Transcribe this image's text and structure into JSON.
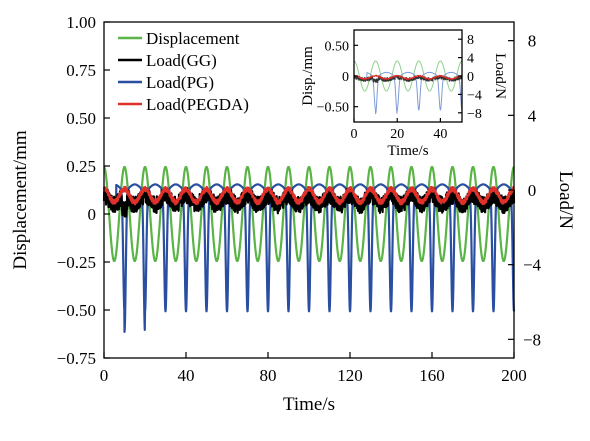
{
  "chart_data": [
    {
      "id": "main",
      "type": "line",
      "xlabel": "Time/s",
      "ylabel": "Displacement/mm",
      "y2label": "Load/N",
      "xlim": [
        0,
        200
      ],
      "ylim": [
        -0.75,
        1.0
      ],
      "y2lim": [
        -9.0,
        9.0
      ],
      "xticks": [
        "0",
        "40",
        "80",
        "120",
        "160",
        "200"
      ],
      "xtick_values": [
        0,
        40,
        80,
        120,
        160,
        200
      ],
      "yticks": [
        "1.00",
        "0.75",
        "0.50",
        "0.25",
        "0",
        "−0.25",
        "−0.50",
        "−0.75"
      ],
      "ytick_values": [
        1.0,
        0.75,
        0.5,
        0.25,
        0,
        -0.25,
        -0.5,
        -0.75
      ],
      "y2ticks": [
        "8",
        "4",
        "0",
        "−4",
        "−8"
      ],
      "y2tick_values": [
        8,
        4,
        0,
        -4,
        -8
      ],
      "grid": false,
      "legend_position": "top-left",
      "period": 10,
      "series": [
        {
          "name": "Displacement",
          "axis": "left",
          "color": "#5ab446",
          "shape": "sine",
          "center": 0.0,
          "amplitude": 0.245,
          "unit": "mm"
        },
        {
          "name": "Load(GG)",
          "axis": "right",
          "color": "#000000",
          "shape": "noisy-flat",
          "center": -0.55,
          "amplitude": 0.45,
          "min": -1.3,
          "unit": "N"
        },
        {
          "name": "Load(PG)",
          "axis": "right",
          "color": "#2a4fa0",
          "shape": "spiky",
          "max": 0.3,
          "min": -6.5,
          "first_min": -7.6,
          "unit": "N"
        },
        {
          "name": "Load(PEGDA)",
          "axis": "right",
          "color": "#e0302a",
          "shape": "sine",
          "center": -0.3,
          "amplitude": 0.35,
          "unit": "N"
        }
      ]
    },
    {
      "id": "inset",
      "type": "line",
      "xlabel": "Time/s",
      "ylabel": "Disp./mm",
      "y2label": "Load/N",
      "xlim": [
        0,
        50
      ],
      "ylim": [
        -0.75,
        0.75
      ],
      "y2lim": [
        -10,
        10
      ],
      "xticks": [
        "0",
        "20",
        "40"
      ],
      "xtick_values": [
        0,
        20,
        40
      ],
      "yticks": [
        "0.50",
        "0",
        "−0.50"
      ],
      "ytick_values": [
        0.5,
        0,
        -0.5
      ],
      "y2ticks": [
        "8",
        "4",
        "0",
        "−4",
        "−8"
      ],
      "y2tick_values": [
        8,
        4,
        0,
        -4,
        -8
      ],
      "period": 10,
      "series": [
        {
          "name": "Displacement",
          "axis": "left",
          "color": "#8fd08a"
        },
        {
          "name": "Load(GG)",
          "axis": "right",
          "color": "#333333"
        },
        {
          "name": "Load(PG)",
          "axis": "right",
          "color": "#7f9bd6"
        },
        {
          "name": "Load(PEGDA)",
          "axis": "right",
          "color": "#e0302a"
        }
      ]
    }
  ]
}
